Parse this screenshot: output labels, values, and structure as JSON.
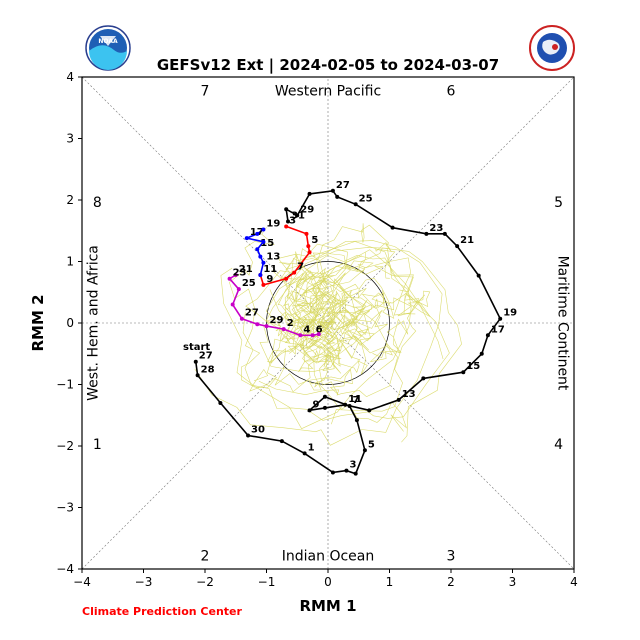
{
  "title": "GEFSv12 Ext | 2024-02-05 to 2024-03-07",
  "credit": "Climate Prediction Center",
  "logos": {
    "left": {
      "name": "noaa-logo",
      "text": "NOAA"
    },
    "right": {
      "name": "national-weather-service-logo",
      "text": "NATIONAL WEATHER SERVICE"
    }
  },
  "chart_data": {
    "type": "scatter",
    "title": "GEFSv12 Ext | 2024-02-05 to 2024-03-07",
    "xlabel": "RMM 1",
    "ylabel": "RMM 2",
    "xlim": [
      -4,
      4
    ],
    "ylim": [
      -4,
      4
    ],
    "xticks": [
      -4,
      -3,
      -2,
      -1,
      0,
      1,
      2,
      3,
      4
    ],
    "yticks": [
      -4,
      -3,
      -2,
      -1,
      0,
      1,
      2,
      3,
      4
    ],
    "unit_circle_radius": 1,
    "phase_numbers": [
      {
        "label": "1",
        "x": -3.75,
        "y": -1.97
      },
      {
        "label": "2",
        "x": -2.0,
        "y": -3.78
      },
      {
        "label": "3",
        "x": 2.0,
        "y": -3.78
      },
      {
        "label": "4",
        "x": 3.75,
        "y": -1.97
      },
      {
        "label": "5",
        "x": 3.75,
        "y": 1.97
      },
      {
        "label": "6",
        "x": 2.0,
        "y": 3.78
      },
      {
        "label": "7",
        "x": -2.0,
        "y": 3.78
      },
      {
        "label": "8",
        "x": -3.75,
        "y": 1.97
      }
    ],
    "region_labels": [
      {
        "label": "Western Pacific",
        "x": 0,
        "y": 3.78,
        "rotate": 0
      },
      {
        "label": "Indian Ocean",
        "x": 0,
        "y": -3.78,
        "rotate": 0
      },
      {
        "label": "Maritime Continent",
        "x": 3.75,
        "y": 0,
        "rotate": 90
      },
      {
        "label": "West. Hem. and Africa",
        "x": -3.75,
        "y": 0,
        "rotate": -90
      }
    ],
    "start_label": {
      "text": "start",
      "x": -2.13,
      "y": -0.37
    },
    "series": [
      {
        "color": "#000000",
        "points": [
          [
            -2.15,
            -0.63,
            "27"
          ],
          [
            -2.12,
            -0.85,
            "28"
          ],
          [
            -1.75,
            -1.3,
            ""
          ],
          [
            -1.3,
            -1.83,
            "30"
          ],
          [
            -0.75,
            -1.92,
            ""
          ],
          [
            -0.38,
            -2.12,
            "1"
          ],
          [
            0.08,
            -2.43,
            ""
          ],
          [
            0.3,
            -2.4,
            "3"
          ],
          [
            0.45,
            -2.45,
            ""
          ],
          [
            0.6,
            -2.07,
            "5"
          ],
          [
            0.47,
            -1.58,
            ""
          ],
          [
            0.35,
            -1.35,
            "7"
          ],
          [
            -0.05,
            -1.2,
            ""
          ],
          [
            -0.3,
            -1.42,
            "9"
          ],
          [
            -0.05,
            -1.38,
            ""
          ],
          [
            0.28,
            -1.33,
            "11"
          ],
          [
            0.67,
            -1.42,
            ""
          ],
          [
            1.15,
            -1.25,
            "13"
          ],
          [
            1.55,
            -0.9,
            ""
          ],
          [
            2.2,
            -0.8,
            "15"
          ],
          [
            2.5,
            -0.5,
            ""
          ],
          [
            2.6,
            -0.2,
            "17"
          ],
          [
            2.8,
            0.07,
            "19"
          ],
          [
            2.45,
            0.77,
            ""
          ],
          [
            2.1,
            1.25,
            "21"
          ],
          [
            1.9,
            1.45,
            ""
          ],
          [
            1.6,
            1.45,
            "23"
          ],
          [
            1.05,
            1.55,
            ""
          ],
          [
            0.45,
            1.93,
            "25"
          ],
          [
            0.15,
            2.05,
            ""
          ],
          [
            0.08,
            2.15,
            "27"
          ],
          [
            -0.3,
            2.1,
            ""
          ],
          [
            -0.5,
            1.75,
            "29"
          ],
          [
            -0.68,
            1.85,
            ""
          ],
          [
            -0.65,
            1.65,
            "31"
          ]
        ]
      },
      {
        "color": "#ff0000",
        "points": [
          [
            -0.68,
            1.57,
            "3"
          ],
          [
            -0.35,
            1.45,
            ""
          ],
          [
            -0.32,
            1.25,
            "5"
          ],
          [
            -0.3,
            1.15,
            ""
          ],
          [
            -0.55,
            0.82,
            "7"
          ],
          [
            -0.68,
            0.72,
            ""
          ],
          [
            -1.05,
            0.62,
            "9"
          ],
          [
            -1.1,
            0.78,
            ""
          ]
        ]
      },
      {
        "color": "#0000ff",
        "points": [
          [
            -1.1,
            0.78,
            "11"
          ],
          [
            -1.05,
            0.98,
            "13"
          ],
          [
            -1.1,
            1.08,
            ""
          ],
          [
            -1.15,
            1.2,
            "15"
          ],
          [
            -1.05,
            1.32,
            ""
          ],
          [
            -1.32,
            1.38,
            "17"
          ],
          [
            -1.15,
            1.45,
            ""
          ],
          [
            -1.05,
            1.52,
            "19"
          ]
        ]
      },
      {
        "color": "#c800c8",
        "points": [
          [
            -1.5,
            0.78,
            "21"
          ],
          [
            -1.6,
            0.72,
            "23"
          ],
          [
            -1.45,
            0.55,
            "25"
          ],
          [
            -1.55,
            0.3,
            ""
          ],
          [
            -1.4,
            0.07,
            "27"
          ],
          [
            -1.15,
            -0.02,
            ""
          ],
          [
            -1.0,
            -0.05,
            "29"
          ],
          [
            -0.72,
            -0.1,
            "2"
          ],
          [
            -0.45,
            -0.2,
            "4"
          ],
          [
            -0.25,
            -0.2,
            "6"
          ],
          [
            -0.15,
            -0.18,
            ""
          ]
        ]
      }
    ],
    "ensemble": {
      "color": "#d8d860",
      "member_count": 30
    }
  }
}
